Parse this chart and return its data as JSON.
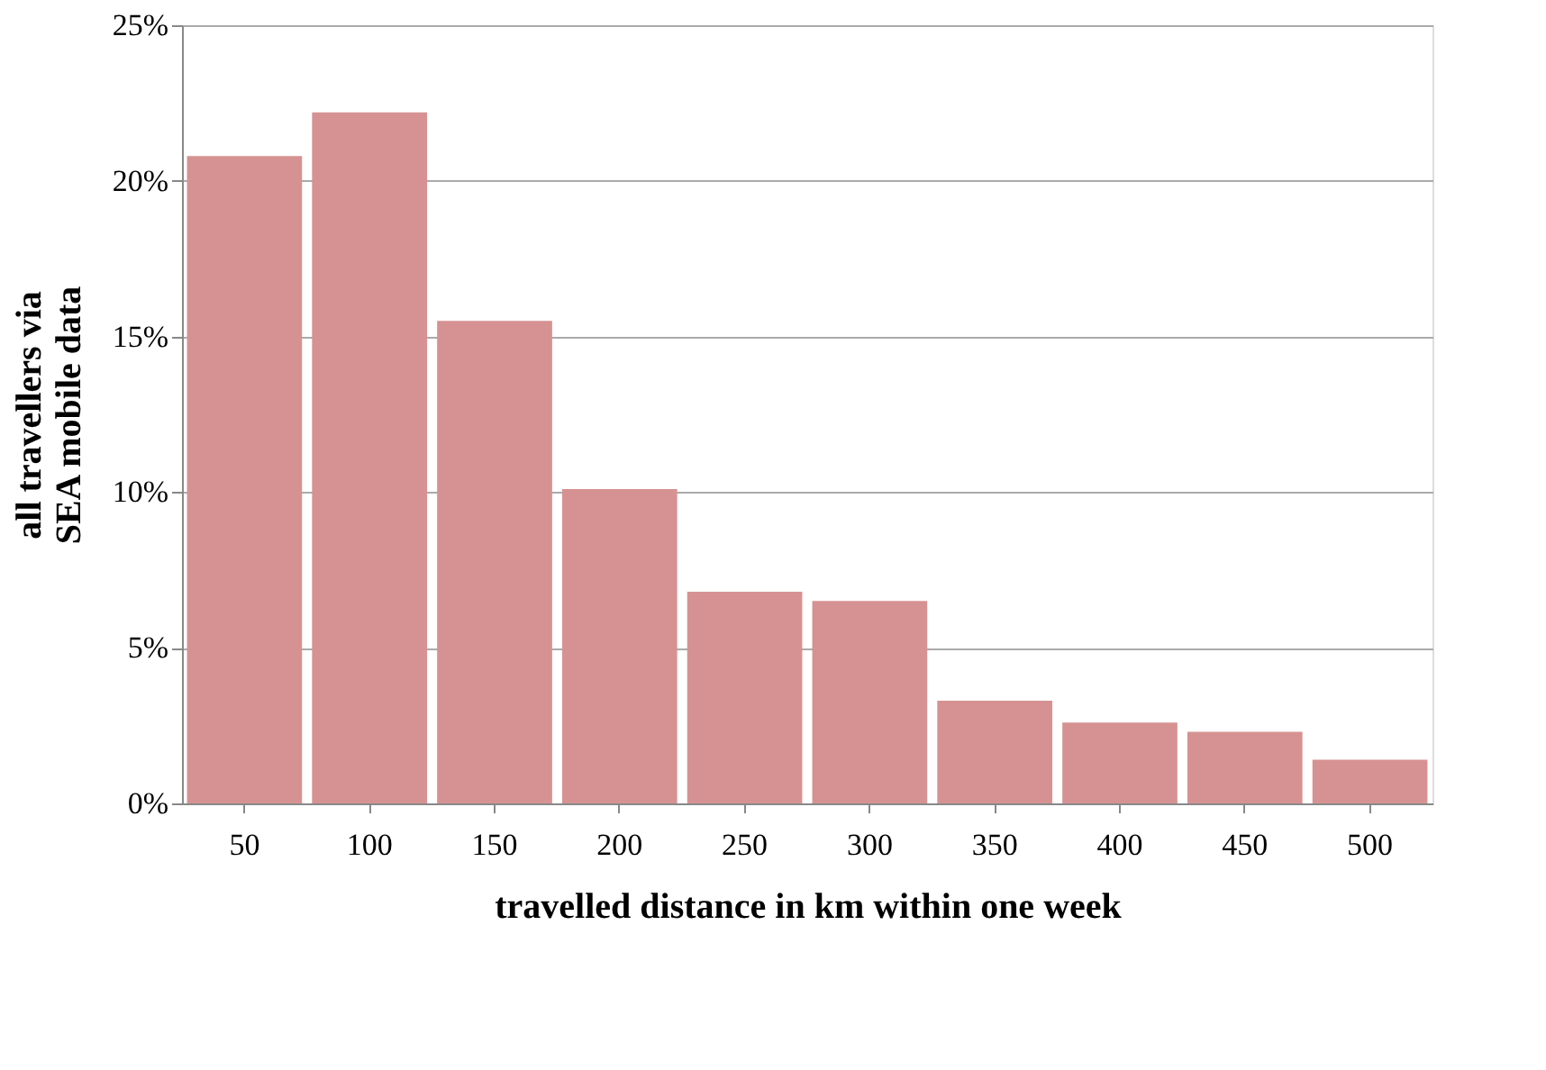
{
  "chart_data": {
    "type": "bar",
    "xlabel": "travelled distance in km within one week",
    "ylabel": "all travellers via SEA mobile data",
    "categories": [
      "50",
      "100",
      "150",
      "200",
      "250",
      "300",
      "350",
      "400",
      "450",
      "500"
    ],
    "values": [
      20.8,
      22.2,
      15.5,
      10.1,
      6.8,
      6.5,
      3.3,
      2.6,
      2.3,
      1.4
    ],
    "color": "#d69292",
    "ylim": [
      0,
      25
    ],
    "yticks": [
      {
        "value": 0,
        "label": "0%"
      },
      {
        "value": 5,
        "label": "5%"
      },
      {
        "value": 10,
        "label": "10%"
      },
      {
        "value": 15,
        "label": "15%"
      },
      {
        "value": 20,
        "label": "20%"
      },
      {
        "value": 25,
        "label": "25%"
      }
    ],
    "grid": "y"
  }
}
